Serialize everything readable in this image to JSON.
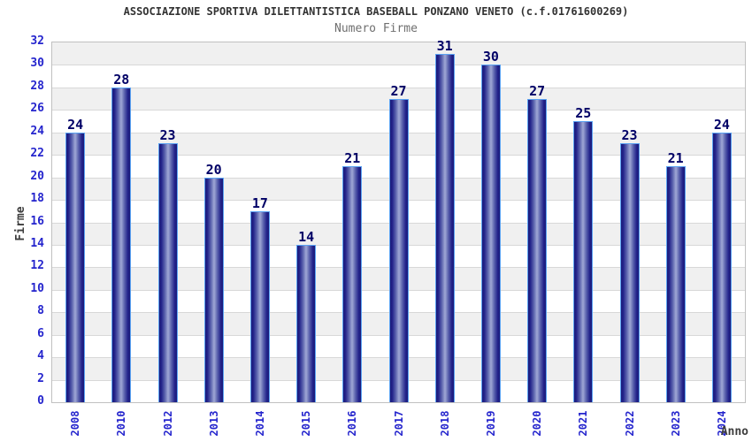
{
  "header": {
    "title": "ASSOCIAZIONE SPORTIVA DILETTANTISTICA BASEBALL PONZANO VENETO (c.f.01761600269)",
    "subtitle": "Numero Firme"
  },
  "chart_data": {
    "type": "bar",
    "title": "ASSOCIAZIONE SPORTIVA DILETTANTISTICA BASEBALL PONZANO VENETO (c.f.01761600269)",
    "subtitle": "Numero Firme",
    "xlabel": "Anno",
    "ylabel": "Firme",
    "categories": [
      "2008",
      "2010",
      "2012",
      "2013",
      "2014",
      "2015",
      "2016",
      "2017",
      "2018",
      "2019",
      "2020",
      "2021",
      "2022",
      "2023",
      "2024"
    ],
    "values": [
      24,
      28,
      23,
      20,
      17,
      14,
      21,
      27,
      31,
      30,
      27,
      25,
      23,
      21,
      24
    ],
    "ylim": [
      0,
      32
    ],
    "ytick_step": 2,
    "grid": true,
    "legend_position": "none",
    "background_bands": "alternating gray/white every 2 units, gray at top",
    "colors": {
      "bar_edge_dark": "#1b1b78",
      "bar_center_light": "#a0a8d6",
      "bar_border": "#5aa2f2",
      "tick_label": "#2525cd",
      "value_label": "#000066",
      "band_gray": "#f0f0f0",
      "grid_line": "#d8d8d8",
      "plot_border": "#c0c0c0",
      "title_color": "#333333",
      "subtitle_color": "#6f6f6f",
      "axis_title_color": "#3d3d3d"
    }
  }
}
